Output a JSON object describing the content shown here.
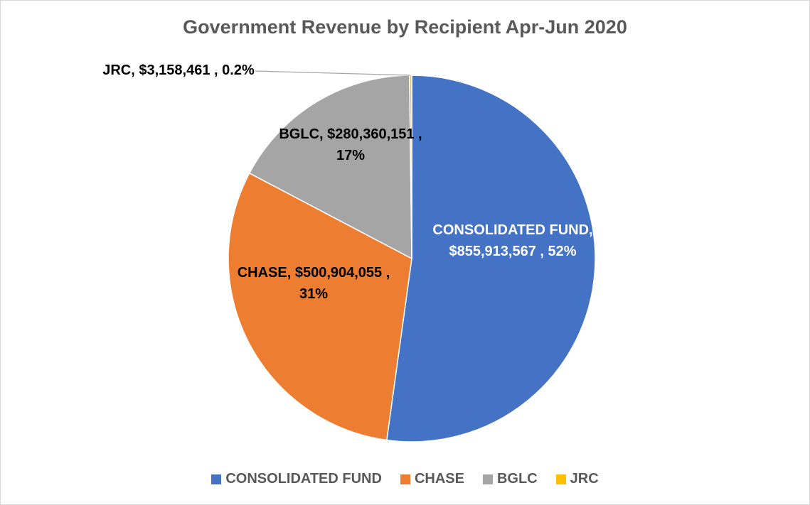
{
  "chart_data": {
    "type": "pie",
    "title": "Government Revenue by Recipient Apr-Jun 2020",
    "categories": [
      "CONSOLIDATED FUND",
      "CHASE",
      "BGLC",
      "JRC"
    ],
    "values": [
      855913567,
      500904055,
      280360151,
      3158461
    ],
    "value_labels": [
      "$855,913,567 ,",
      "$500,904,055 ,",
      "$280,360,151 ,",
      "$3,158,461 ,"
    ],
    "percent_labels": [
      "52%",
      "31%",
      "17%",
      "0.2%"
    ],
    "label_separator": ",",
    "colors": [
      "#4472c4",
      "#ed7d31",
      "#a5a5a5",
      "#ffc000"
    ],
    "legend": "bottom"
  }
}
